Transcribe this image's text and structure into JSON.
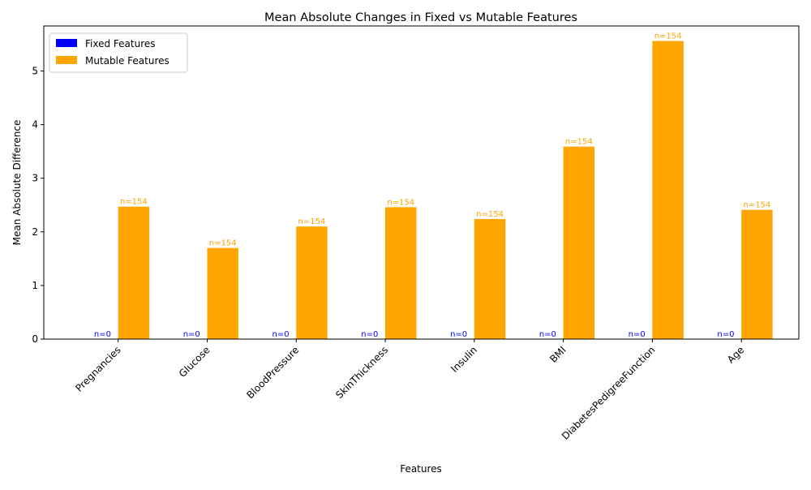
{
  "chart_data": {
    "type": "bar",
    "title": "Mean Absolute Changes in Fixed vs Mutable Features",
    "xlabel": "Features",
    "ylabel": "Mean Absolute Difference",
    "categories": [
      "Pregnancies",
      "Glucose",
      "BloodPressure",
      "SkinThickness",
      "Insulin",
      "BMI",
      "DiabetesPedigreeFunction",
      "Age"
    ],
    "series": [
      {
        "name": "Fixed Features",
        "color": "#0000ff",
        "values": [
          0,
          0,
          0,
          0,
          0,
          0,
          0,
          0
        ],
        "labels": [
          "n=0",
          "n=0",
          "n=0",
          "n=0",
          "n=0",
          "n=0",
          "n=0",
          "n=0"
        ]
      },
      {
        "name": "Mutable Features",
        "color": "#ffa500",
        "values": [
          2.47,
          1.7,
          2.1,
          2.46,
          2.24,
          3.59,
          5.56,
          2.41
        ],
        "labels": [
          "n=154",
          "n=154",
          "n=154",
          "n=154",
          "n=154",
          "n=154",
          "n=154",
          "n=154"
        ]
      }
    ],
    "yticks": [
      "0",
      "1",
      "2",
      "3",
      "4",
      "5"
    ],
    "ylim": [
      0,
      5.84
    ],
    "legend_position": "upper-left",
    "grid": false
  }
}
